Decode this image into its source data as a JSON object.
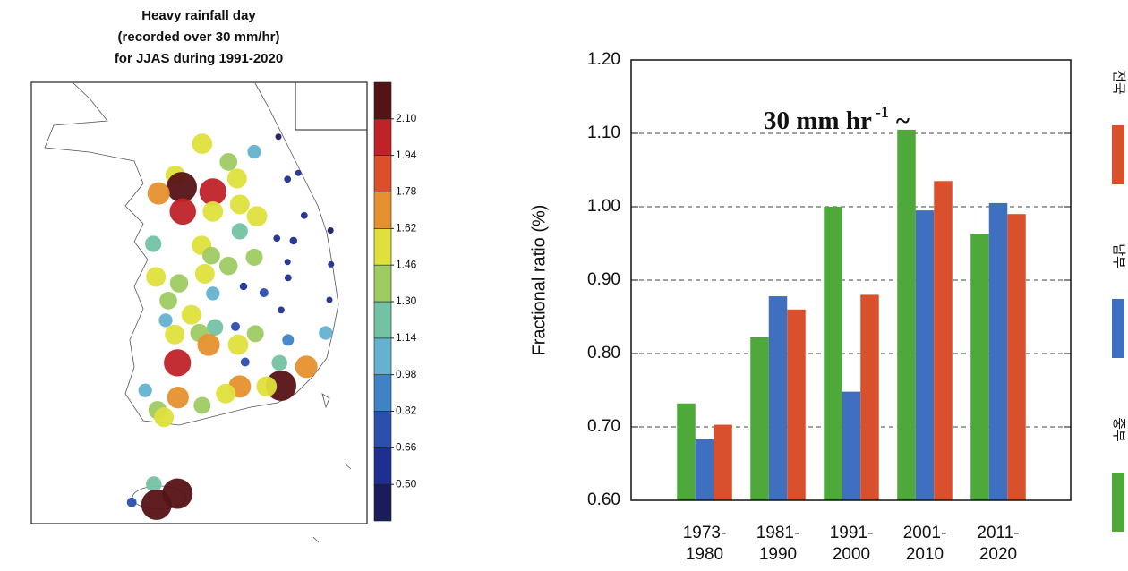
{
  "chart_data": [
    {
      "type": "bubble-map",
      "title": [
        "Heavy rainfall day",
        "(recorded over 30 mm/hr)",
        "for JJAS during 1991-2020"
      ],
      "xlim": [
        124,
        130.25
      ],
      "ylim": [
        33.3,
        38.9
      ],
      "lon": [
        127.18,
        128.15,
        128.6,
        127.67,
        127.83,
        128.77,
        128.97,
        126.68,
        126.8,
        126.37,
        127.38,
        126.82,
        127.38,
        127.88,
        128.2,
        129.08,
        129.57,
        128.57,
        128.88,
        127.88,
        126.27,
        127.17,
        127.35,
        127.67,
        128.15,
        128.77,
        129.58,
        128.78,
        127.23,
        126.32,
        126.75,
        127.95,
        128.33,
        127.38,
        126.55,
        129.55,
        128.65,
        126.98,
        126.5,
        127.42,
        127.13,
        127.8,
        126.67,
        128.17,
        127.3,
        127.85,
        128.78,
        129.48,
        126.72,
        127.98,
        128.62,
        129.12,
        128.65,
        127.88,
        128.38,
        127.62,
        126.73,
        126.12,
        127.18,
        126.35,
        126.47,
        126.28,
        125.87,
        126.72,
        126.33
      ],
      "lat": [
        38.12,
        38.02,
        38.21,
        37.89,
        37.68,
        37.67,
        37.75,
        37.72,
        37.57,
        37.49,
        37.51,
        37.26,
        37.26,
        37.35,
        37.2,
        37.21,
        37.02,
        36.92,
        36.89,
        37.01,
        36.85,
        36.83,
        36.7,
        36.57,
        36.68,
        36.62,
        36.59,
        36.42,
        36.47,
        36.43,
        36.35,
        36.31,
        36.23,
        36.22,
        36.13,
        36.14,
        36.01,
        35.95,
        35.88,
        35.79,
        35.72,
        35.8,
        35.7,
        35.71,
        35.57,
        35.57,
        35.63,
        35.72,
        35.34,
        35.35,
        35.34,
        35.29,
        35.05,
        35.04,
        35.04,
        34.95,
        34.9,
        34.99,
        34.8,
        34.74,
        34.65,
        33.8,
        33.57,
        33.68,
        33.54
      ],
      "values": [
        1.55,
        1.05,
        0.45,
        1.35,
        1.5,
        0.55,
        0.5,
        1.5,
        2.3,
        1.7,
        2.05,
        2.0,
        1.55,
        1.5,
        1.55,
        0.55,
        0.45,
        0.55,
        0.6,
        1.25,
        1.25,
        1.5,
        1.35,
        1.4,
        1.3,
        0.5,
        0.5,
        0.55,
        1.5,
        1.5,
        1.4,
        0.6,
        0.7,
        1.05,
        1.35,
        0.5,
        0.55,
        1.5,
        1.05,
        1.25,
        1.4,
        0.7,
        1.5,
        1.3,
        1.7,
        1.55,
        0.9,
        1.05,
        2.05,
        0.7,
        1.2,
        1.7,
        2.3,
        1.7,
        1.55,
        1.5,
        1.65,
        1.05,
        1.3,
        1.4,
        1.5,
        1.2,
        0.75,
        2.3,
        2.3
      ],
      "colorbar_ticks": [
        {
          "value": 0.5,
          "label": "0.50"
        },
        0.66,
        0.82,
        0.98,
        1.14,
        {
          "value": 1.3,
          "label": "1.30"
        },
        1.46,
        1.62,
        1.78,
        1.94,
        {
          "value": 2.1,
          "label": "2.10"
        }
      ],
      "colors": [
        "#1a1d5a",
        "#1f2f8f",
        "#2a4fae",
        "#3f82c6",
        "#64b2cf",
        "#74c2a4",
        "#9fcb63",
        "#dfe03c",
        "#e6912f",
        "#dc4f2a",
        "#bf2328",
        "#561316"
      ]
    },
    {
      "type": "bar",
      "annotation": {
        "text": "30 mm hr",
        "superscript": "-1",
        "suffix": "~"
      },
      "y_label": "Fractional ratio (%)",
      "categories": [
        "1973-\n1980",
        "1981-\n1990",
        "1991-\n2000",
        "2001-\n2010",
        "2011-\n2020"
      ],
      "series": [
        {
          "name": "중부",
          "color": "#4ea83a",
          "values": [
            0.732,
            0.822,
            1.0,
            1.105,
            0.963
          ]
        },
        {
          "name": "남부",
          "color": "#3f6fc0",
          "values": [
            0.683,
            0.878,
            0.748,
            0.995,
            1.005
          ]
        },
        {
          "name": "전국",
          "color": "#d9502c",
          "values": [
            0.703,
            0.86,
            0.88,
            1.035,
            0.99
          ]
        }
      ],
      "ylim": [
        0.6,
        1.2
      ],
      "yticks": [
        {
          "value": 0.6,
          "label": "0.60"
        },
        {
          "value": 0.7,
          "label": "0.70"
        },
        {
          "value": 0.8,
          "label": "0.80"
        },
        {
          "value": 0.9,
          "label": "0.90"
        },
        {
          "value": 1.0,
          "label": "1.00"
        },
        {
          "value": 1.1,
          "label": "1.10"
        },
        {
          "value": 1.2,
          "label": "1.20"
        }
      ],
      "grid": true
    }
  ]
}
